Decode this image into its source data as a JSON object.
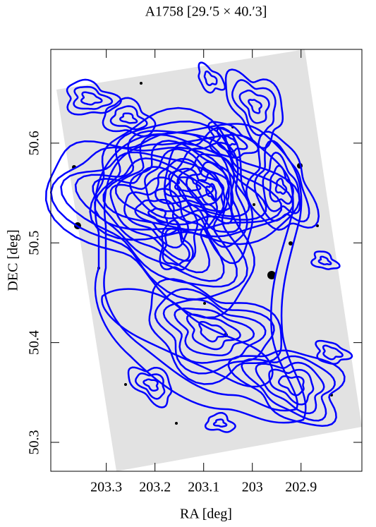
{
  "chart_data": {
    "type": "contour",
    "title": "A1758  [29.′5 × 40.′3]",
    "xlabel": "RA [deg]",
    "ylabel": "DEC [deg]",
    "xlim": [
      203.414,
      202.775
    ],
    "ylim": [
      50.271,
      50.694
    ],
    "xticks": [
      203.3,
      203.2,
      203.1,
      203,
      202.9
    ],
    "yticks": [
      50.3,
      50.4,
      50.5,
      50.6
    ],
    "color": "#0000ff"
  }
}
